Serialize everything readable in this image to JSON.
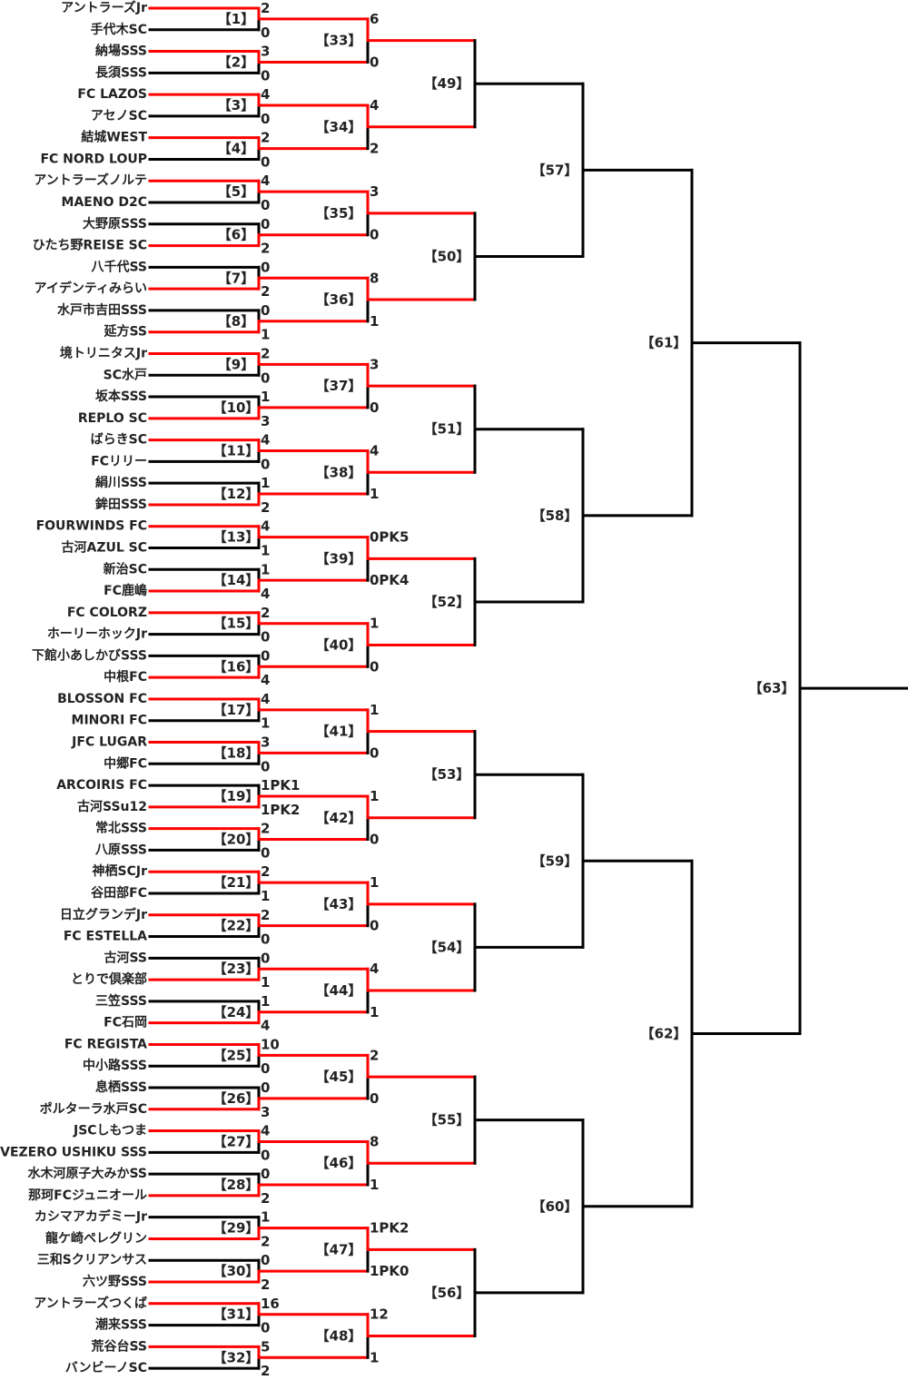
{
  "colors": {
    "advanced": "#ff0000",
    "line": "#000000"
  },
  "round1": [
    {
      "label": "【1】",
      "teams": [
        {
          "name": "アントラーズJr",
          "score": "2"
        },
        {
          "name": "手代木SC",
          "score": "0"
        }
      ],
      "winner": 0
    },
    {
      "label": "【2】",
      "teams": [
        {
          "name": "納場SSS",
          "score": "3"
        },
        {
          "name": "長須SSS",
          "score": "0"
        }
      ],
      "winner": 0
    },
    {
      "label": "【3】",
      "teams": [
        {
          "name": "FC LAZOS",
          "score": "4"
        },
        {
          "name": "アセノSC",
          "score": "0"
        }
      ],
      "winner": 0
    },
    {
      "label": "【4】",
      "teams": [
        {
          "name": "結城WEST",
          "score": "2"
        },
        {
          "name": "FC NORD LOUP",
          "score": "0"
        }
      ],
      "winner": 0
    },
    {
      "label": "【5】",
      "teams": [
        {
          "name": "アントラーズノルテ",
          "score": "4"
        },
        {
          "name": "MAENO D2C",
          "score": "0"
        }
      ],
      "winner": 0
    },
    {
      "label": "【6】",
      "teams": [
        {
          "name": "大野原SSS",
          "score": "0"
        },
        {
          "name": "ひたち野REISE SC",
          "score": "2"
        }
      ],
      "winner": 1
    },
    {
      "label": "【7】",
      "teams": [
        {
          "name": "八千代SS",
          "score": "0"
        },
        {
          "name": "アイデンティみらい",
          "score": "2"
        }
      ],
      "winner": 1
    },
    {
      "label": "【8】",
      "teams": [
        {
          "name": "水戸市吉田SSS",
          "score": "0"
        },
        {
          "name": "延方SS",
          "score": "1"
        }
      ],
      "winner": 1
    },
    {
      "label": "【9】",
      "teams": [
        {
          "name": "境トリニタスJr",
          "score": "2"
        },
        {
          "name": "SC水戸",
          "score": "0"
        }
      ],
      "winner": 0
    },
    {
      "label": "【10】",
      "teams": [
        {
          "name": "坂本SSS",
          "score": "1"
        },
        {
          "name": "REPLO SC",
          "score": "3"
        }
      ],
      "winner": 1
    },
    {
      "label": "【11】",
      "teams": [
        {
          "name": "ばらきSC",
          "score": "4"
        },
        {
          "name": "FCリリー",
          "score": "0"
        }
      ],
      "winner": 0
    },
    {
      "label": "【12】",
      "teams": [
        {
          "name": "絹川SSS",
          "score": "1"
        },
        {
          "name": "鉾田SSS",
          "score": "2"
        }
      ],
      "winner": 1
    },
    {
      "label": "【13】",
      "teams": [
        {
          "name": "FOURWINDS FC",
          "score": "4"
        },
        {
          "name": "古河AZUL SC",
          "score": "1"
        }
      ],
      "winner": 0
    },
    {
      "label": "【14】",
      "teams": [
        {
          "name": "新治SC",
          "score": "1"
        },
        {
          "name": "FC鹿嶋",
          "score": "4"
        }
      ],
      "winner": 1
    },
    {
      "label": "【15】",
      "teams": [
        {
          "name": "FC COLORZ",
          "score": "2"
        },
        {
          "name": "ホーリーホックJr",
          "score": "0"
        }
      ],
      "winner": 0
    },
    {
      "label": "【16】",
      "teams": [
        {
          "name": "下館小あしかびSSS",
          "score": "0"
        },
        {
          "name": "中根FC",
          "score": "4"
        }
      ],
      "winner": 1
    },
    {
      "label": "【17】",
      "teams": [
        {
          "name": "BLOSSON FC",
          "score": "4"
        },
        {
          "name": "MINORI FC",
          "score": "1"
        }
      ],
      "winner": 0
    },
    {
      "label": "【18】",
      "teams": [
        {
          "name": "JFC LUGAR",
          "score": "3"
        },
        {
          "name": "中郷FC",
          "score": "0"
        }
      ],
      "winner": 0
    },
    {
      "label": "【19】",
      "teams": [
        {
          "name": "ARCOIRIS FC",
          "score": "1PK1"
        },
        {
          "name": "古河SSu12",
          "score": "1PK2"
        }
      ],
      "winner": 1
    },
    {
      "label": "【20】",
      "teams": [
        {
          "name": "常北SSS",
          "score": "2"
        },
        {
          "name": "八原SSS",
          "score": "0"
        }
      ],
      "winner": 0
    },
    {
      "label": "【21】",
      "teams": [
        {
          "name": "神栖SCJr",
          "score": "2"
        },
        {
          "name": "谷田部FC",
          "score": "1"
        }
      ],
      "winner": 0
    },
    {
      "label": "【22】",
      "teams": [
        {
          "name": "日立グランデJr",
          "score": "2"
        },
        {
          "name": "FC ESTELLA",
          "score": "0"
        }
      ],
      "winner": 0
    },
    {
      "label": "【23】",
      "teams": [
        {
          "name": "古河SS",
          "score": "0"
        },
        {
          "name": "とりで倶楽部",
          "score": "1"
        }
      ],
      "winner": 1
    },
    {
      "label": "【24】",
      "teams": [
        {
          "name": "三笠SSS",
          "score": "1"
        },
        {
          "name": "FC石岡",
          "score": "4"
        }
      ],
      "winner": 1
    },
    {
      "label": "【25】",
      "teams": [
        {
          "name": "FC REGISTA",
          "score": "10"
        },
        {
          "name": "中小路SSS",
          "score": "0"
        }
      ],
      "winner": 0
    },
    {
      "label": "【26】",
      "teams": [
        {
          "name": "息栖SSS",
          "score": "0"
        },
        {
          "name": "ポルターラ水戸SC",
          "score": "3"
        }
      ],
      "winner": 1
    },
    {
      "label": "【27】",
      "teams": [
        {
          "name": "JSCしもつま",
          "score": "4"
        },
        {
          "name": "VEZERO USHIKU SSS",
          "score": "0"
        }
      ],
      "winner": 0
    },
    {
      "label": "【28】",
      "teams": [
        {
          "name": "水木河原子大みかSS",
          "score": "0"
        },
        {
          "name": "那珂FCジュニオール",
          "score": "2"
        }
      ],
      "winner": 1
    },
    {
      "label": "【29】",
      "teams": [
        {
          "name": "カシマアカデミーJr",
          "score": "1"
        },
        {
          "name": "龍ケ崎ペレグリン",
          "score": "2"
        }
      ],
      "winner": 1
    },
    {
      "label": "【30】",
      "teams": [
        {
          "name": "三和Sクリアンサス",
          "score": "0"
        },
        {
          "name": "六ツ野SSS",
          "score": "2"
        }
      ],
      "winner": 1
    },
    {
      "label": "【31】",
      "teams": [
        {
          "name": "アントラーズつくば",
          "score": "16"
        },
        {
          "name": "潮来SSS",
          "score": "0"
        }
      ],
      "winner": 0
    },
    {
      "label": "【32】",
      "teams": [
        {
          "name": "荒谷台SS",
          "score": "5"
        },
        {
          "name": "バンビーノSC",
          "score": "2"
        }
      ],
      "winner": 0
    }
  ],
  "round2": [
    {
      "label": "【33】",
      "scores": [
        "6",
        "0"
      ],
      "winner": 0
    },
    {
      "label": "【34】",
      "scores": [
        "4",
        "2"
      ],
      "winner": 0
    },
    {
      "label": "【35】",
      "scores": [
        "3",
        "0"
      ],
      "winner": 0
    },
    {
      "label": "【36】",
      "scores": [
        "8",
        "1"
      ],
      "winner": 0
    },
    {
      "label": "【37】",
      "scores": [
        "3",
        "0"
      ],
      "winner": 0
    },
    {
      "label": "【38】",
      "scores": [
        "4",
        "1"
      ],
      "winner": 0
    },
    {
      "label": "【39】",
      "scores": [
        "0PK5",
        "0PK4"
      ],
      "winner": 0
    },
    {
      "label": "【40】",
      "scores": [
        "1",
        "0"
      ],
      "winner": 0
    },
    {
      "label": "【41】",
      "scores": [
        "1",
        "0"
      ],
      "winner": 0
    },
    {
      "label": "【42】",
      "scores": [
        "1",
        "0"
      ],
      "winner": 0
    },
    {
      "label": "【43】",
      "scores": [
        "1",
        "0"
      ],
      "winner": 0
    },
    {
      "label": "【44】",
      "scores": [
        "4",
        "1"
      ],
      "winner": 0
    },
    {
      "label": "【45】",
      "scores": [
        "2",
        "0"
      ],
      "winner": 0
    },
    {
      "label": "【46】",
      "scores": [
        "8",
        "1"
      ],
      "winner": 0
    },
    {
      "label": "【47】",
      "scores": [
        "1PK2",
        "1PK0"
      ],
      "winner": 0
    },
    {
      "label": "【48】",
      "scores": [
        "12",
        "1"
      ],
      "winner": 0
    }
  ],
  "round3": [
    {
      "label": "【49】"
    },
    {
      "label": "【50】"
    },
    {
      "label": "【51】"
    },
    {
      "label": "【52】"
    },
    {
      "label": "【53】"
    },
    {
      "label": "【54】"
    },
    {
      "label": "【55】"
    },
    {
      "label": "【56】"
    }
  ],
  "round4": [
    {
      "label": "【57】"
    },
    {
      "label": "【58】"
    },
    {
      "label": "【59】"
    },
    {
      "label": "【60】"
    }
  ],
  "round5": [
    {
      "label": "【61】"
    },
    {
      "label": "【62】"
    }
  ],
  "final": [
    {
      "label": "【63】"
    }
  ]
}
